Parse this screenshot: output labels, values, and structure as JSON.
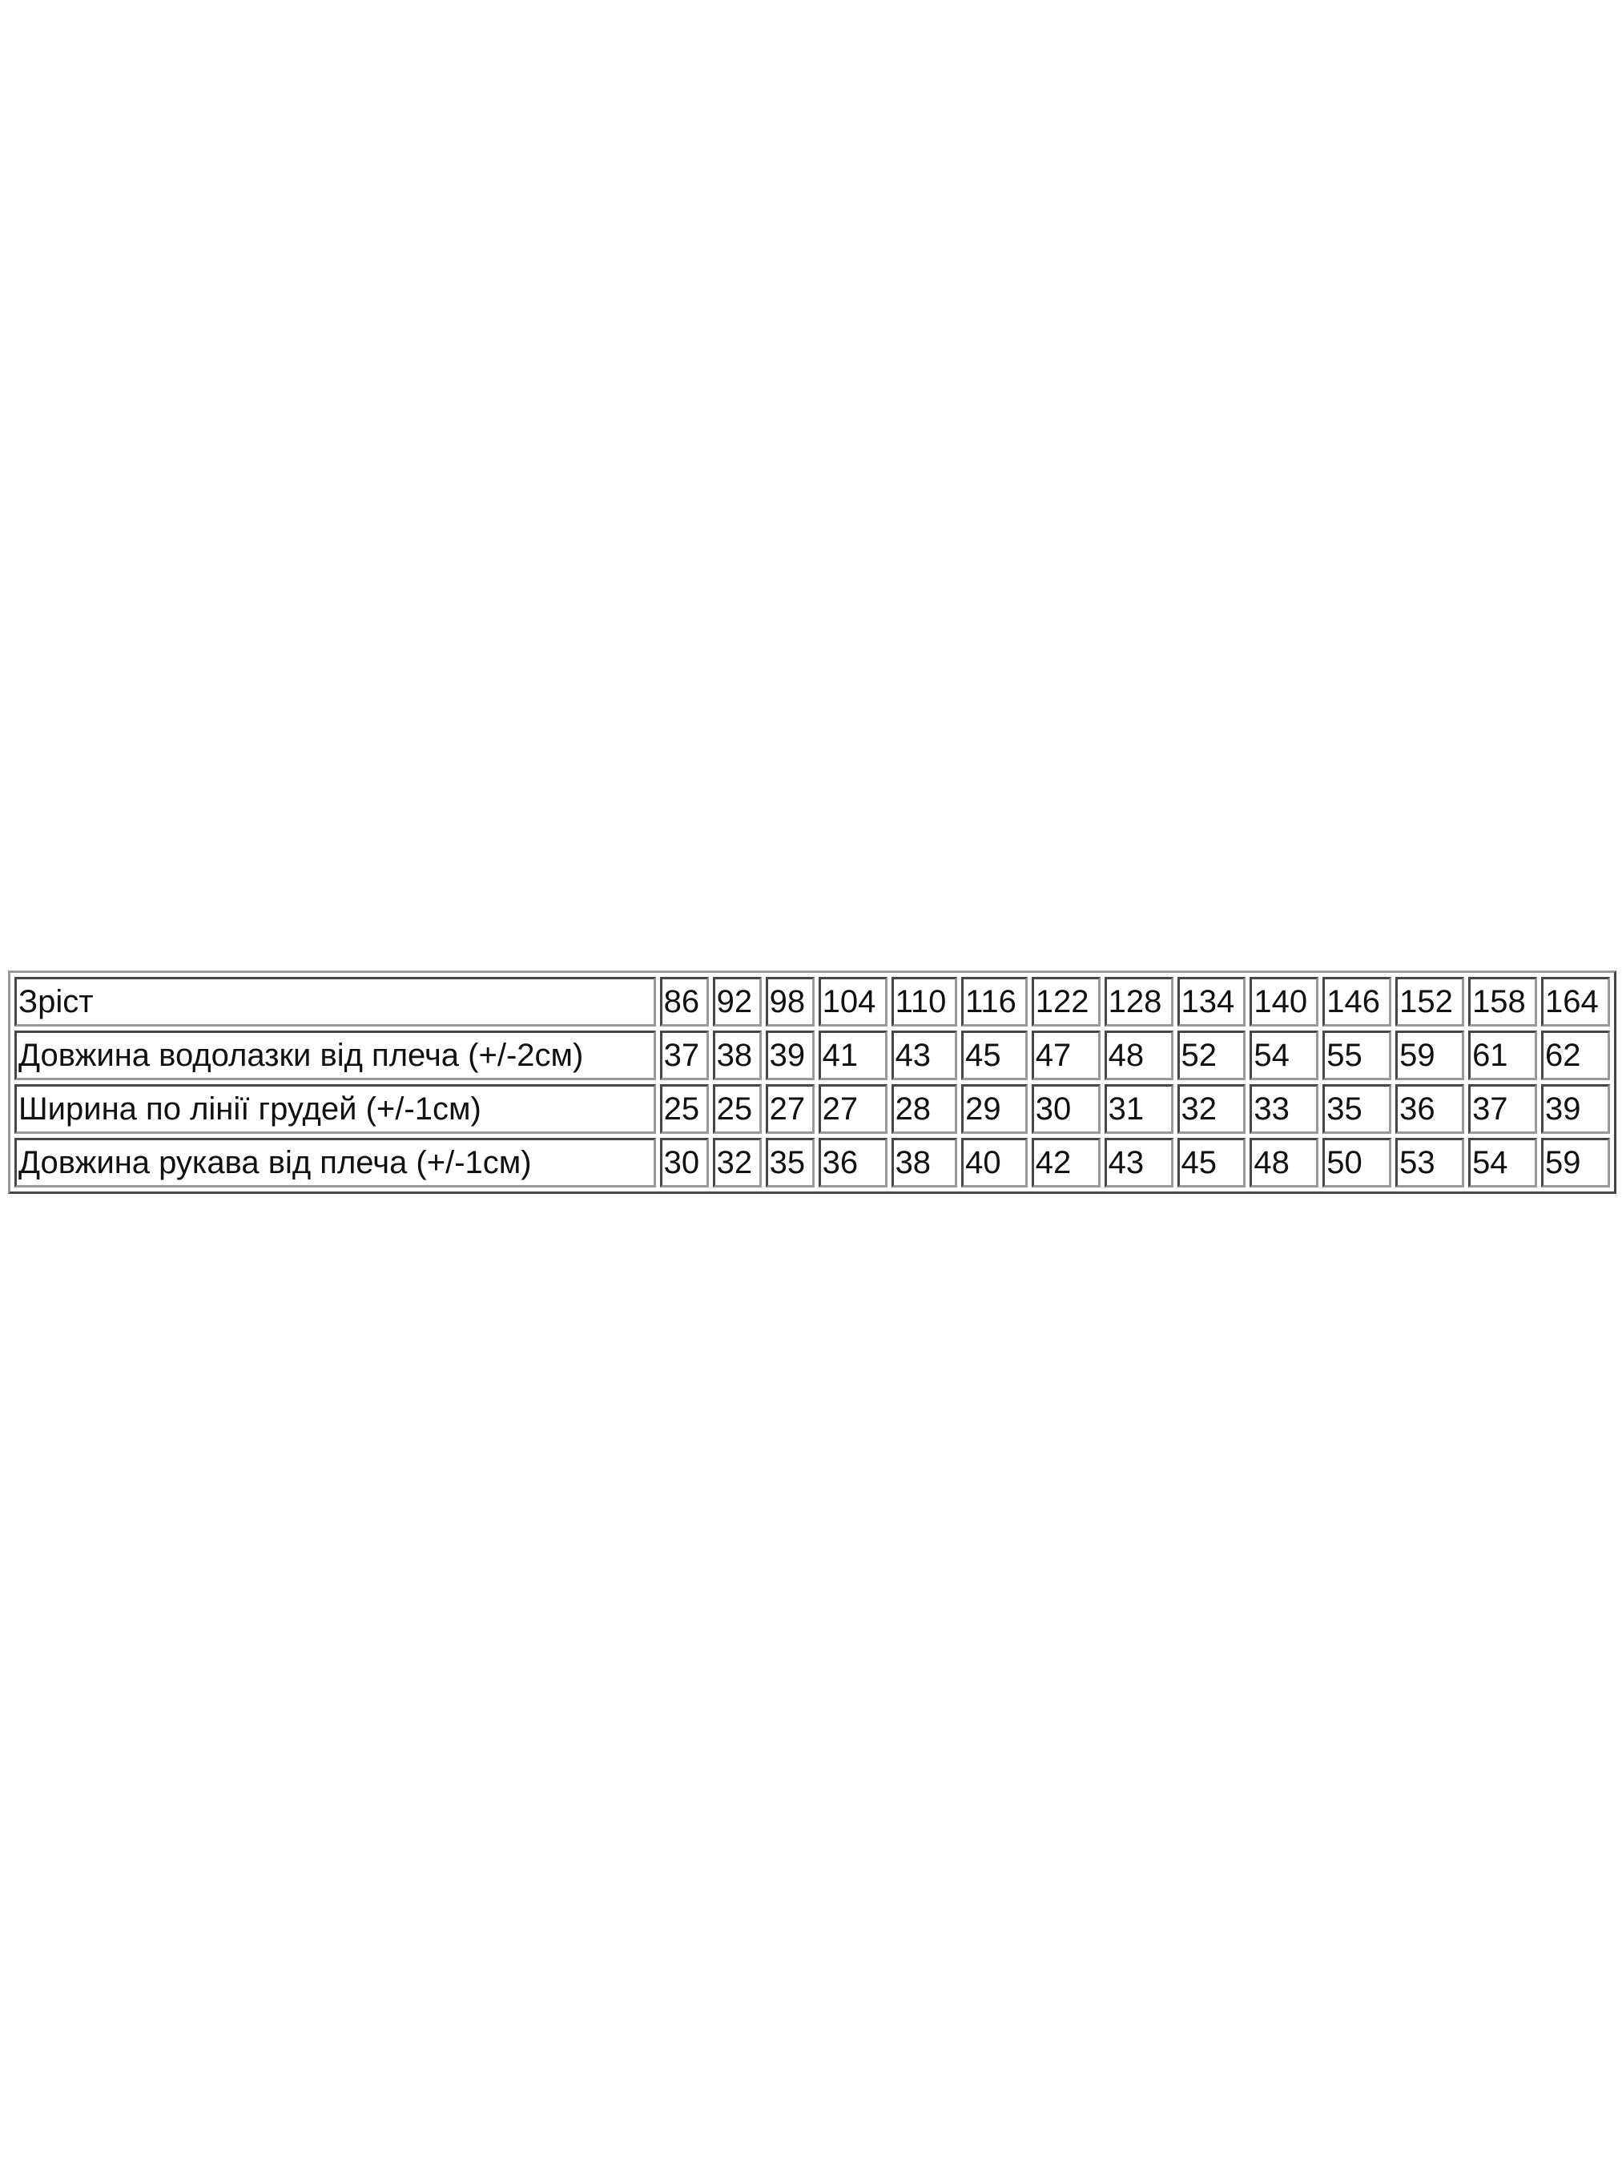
{
  "table": {
    "rows": [
      {
        "label": "Зріст",
        "values": [
          "86",
          "92",
          "98",
          "104",
          "110",
          "116",
          "122",
          "128",
          "134",
          "140",
          "146",
          "152",
          "158",
          "164"
        ]
      },
      {
        "label": "Довжина водолазки від плеча (+/-2см)",
        "values": [
          "37",
          "38",
          "39",
          "41",
          "43",
          "45",
          "47",
          "48",
          "52",
          "54",
          "55",
          "59",
          "61",
          "62"
        ]
      },
      {
        "label": "Ширина по лінії грудей (+/-1см)",
        "values": [
          "25",
          "25",
          "27",
          "27",
          "28",
          "29",
          "30",
          "31",
          "32",
          "33",
          "35",
          "36",
          "37",
          "39"
        ]
      },
      {
        "label": "Довжина рукава від плеча (+/-1см)",
        "values": [
          "30",
          "32",
          "35",
          "36",
          "38",
          "40",
          "42",
          "43",
          "45",
          "48",
          "50",
          "53",
          "54",
          "59"
        ]
      }
    ]
  }
}
